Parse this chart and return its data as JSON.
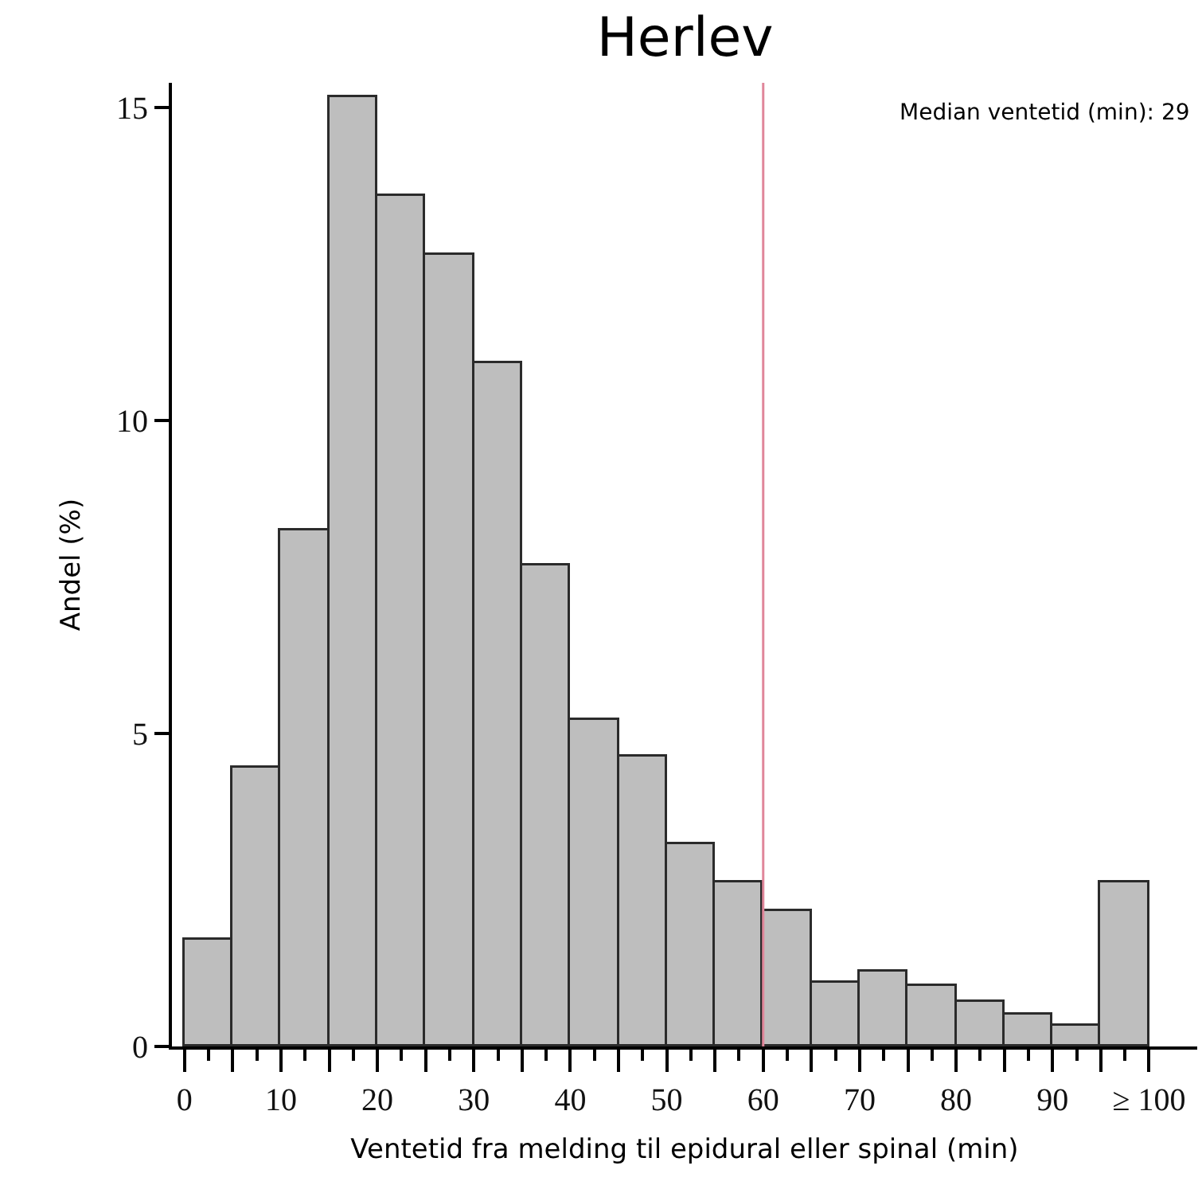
{
  "chart_data": {
    "type": "histogram",
    "title": "Herlev",
    "xlabel": "Ventetid fra melding til epidural eller spinal (min)",
    "ylabel": "Andel (%)",
    "bins": [
      0,
      5,
      10,
      15,
      20,
      25,
      30,
      35,
      40,
      45,
      50,
      55,
      60,
      65,
      70,
      75,
      80,
      85,
      90,
      95,
      100
    ],
    "values": [
      1.7,
      4.45,
      8.26,
      15.18,
      13.6,
      12.64,
      10.93,
      7.68,
      5.21,
      4.64,
      3.24,
      2.62,
      2.16,
      1.03,
      1.2,
      0.96,
      0.71,
      0.51,
      0.32,
      2.62
    ],
    "color": "#bebebe",
    "xlim": [
      -1.3,
      105
    ],
    "ylim": [
      0,
      15.4
    ],
    "xticks": [
      0,
      {
        "value": 2.5,
        "label": null
      },
      {
        "value": 5,
        "label": null
      },
      {
        "value": 7.5,
        "label": null
      },
      10,
      {
        "value": 12.5,
        "label": null
      },
      {
        "value": 15,
        "label": null
      },
      {
        "value": 17.5,
        "label": null
      },
      20,
      {
        "value": 22.5,
        "label": null
      },
      {
        "value": 25,
        "label": null
      },
      {
        "value": 27.5,
        "label": null
      },
      30,
      {
        "value": 32.5,
        "label": null
      },
      {
        "value": 35,
        "label": null
      },
      {
        "value": 37.5,
        "label": null
      },
      40,
      {
        "value": 42.5,
        "label": null
      },
      {
        "value": 45,
        "label": null
      },
      {
        "value": 47.5,
        "label": null
      },
      50,
      {
        "value": 52.5,
        "label": null
      },
      {
        "value": 55,
        "label": null
      },
      {
        "value": 57.5,
        "label": null
      },
      60,
      {
        "value": 62.5,
        "label": null
      },
      {
        "value": 65,
        "label": null
      },
      {
        "value": 67.5,
        "label": null
      },
      70,
      {
        "value": 72.5,
        "label": null
      },
      {
        "value": 75,
        "label": null
      },
      {
        "value": 77.5,
        "label": null
      },
      80,
      {
        "value": 82.5,
        "label": null
      },
      {
        "value": 85,
        "label": null
      },
      {
        "value": 87.5,
        "label": null
      },
      90,
      {
        "value": 92.5,
        "label": null
      },
      {
        "value": 95,
        "label": null
      },
      {
        "value": 97.5,
        "label": null
      },
      {
        "value": 100,
        "label": "≥ 100"
      }
    ],
    "yticks": [
      0,
      5,
      10,
      15
    ],
    "ref_lines": [
      {
        "axis": "x",
        "value": 60,
        "color": "#e0869a"
      }
    ],
    "annotations": [
      "Median ventetid (min): 29"
    ]
  }
}
